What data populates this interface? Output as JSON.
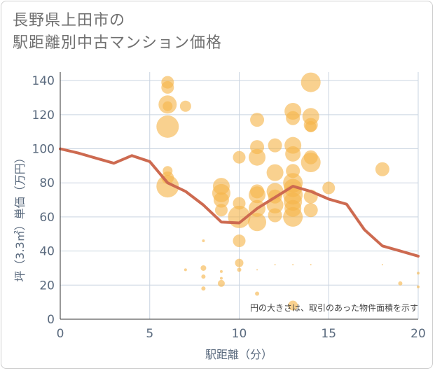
{
  "chart_data": {
    "type": "scatter",
    "title": [
      "長野県上田市の",
      "駅距離別中古マンション価格"
    ],
    "xlabel": "駅距離（分）",
    "ylabel": "坪（3.3㎡）単価（万円）",
    "note": "円の大きさは、取引のあった物件面積を示す",
    "xlim": [
      0,
      20
    ],
    "ylim": [
      0,
      145
    ],
    "xticks": [
      "0",
      "5",
      "10",
      "15",
      "20"
    ],
    "yticks": [
      "0",
      "20",
      "40",
      "60",
      "80",
      "100",
      "120",
      "140"
    ],
    "grid": true,
    "colors": {
      "bubble": "#f5b54a",
      "line": "#cd6a50",
      "grid": "#c9d4e0"
    },
    "series": [
      {
        "type": "bubble",
        "points": [
          {
            "x": 6,
            "y": 139,
            "s": 9
          },
          {
            "x": 6,
            "y": 136,
            "s": 9
          },
          {
            "x": 6,
            "y": 126,
            "s": 13
          },
          {
            "x": 6,
            "y": 125,
            "s": 7
          },
          {
            "x": 6,
            "y": 113,
            "s": 16
          },
          {
            "x": 7,
            "y": 125,
            "s": 8
          },
          {
            "x": 6,
            "y": 87,
            "s": 7
          },
          {
            "x": 6,
            "y": 83,
            "s": 9
          },
          {
            "x": 6,
            "y": 78,
            "s": 16
          },
          {
            "x": 7,
            "y": 29,
            "s": 2
          },
          {
            "x": 8,
            "y": 46,
            "s": 2
          },
          {
            "x": 8,
            "y": 30,
            "s": 4
          },
          {
            "x": 8,
            "y": 25,
            "s": 3
          },
          {
            "x": 8,
            "y": 18,
            "s": 3
          },
          {
            "x": 9,
            "y": 78,
            "s": 12
          },
          {
            "x": 9,
            "y": 74,
            "s": 13
          },
          {
            "x": 9,
            "y": 70,
            "s": 11
          },
          {
            "x": 9,
            "y": 64,
            "s": 9
          },
          {
            "x": 9,
            "y": 28,
            "s": 2
          },
          {
            "x": 9,
            "y": 24,
            "s": 2
          },
          {
            "x": 9,
            "y": 21,
            "s": 5
          },
          {
            "x": 10,
            "y": 95,
            "s": 9
          },
          {
            "x": 10,
            "y": 68,
            "s": 9
          },
          {
            "x": 10,
            "y": 60,
            "s": 16
          },
          {
            "x": 10,
            "y": 46,
            "s": 9
          },
          {
            "x": 10,
            "y": 33,
            "s": 6
          },
          {
            "x": 10,
            "y": 29,
            "s": 3
          },
          {
            "x": 11,
            "y": 117,
            "s": 10
          },
          {
            "x": 11,
            "y": 101,
            "s": 10
          },
          {
            "x": 11,
            "y": 95,
            "s": 12
          },
          {
            "x": 11,
            "y": 75,
            "s": 10
          },
          {
            "x": 11,
            "y": 73,
            "s": 12
          },
          {
            "x": 11,
            "y": 65,
            "s": 12
          },
          {
            "x": 11,
            "y": 57,
            "s": 13
          },
          {
            "x": 11,
            "y": 29,
            "s": 1
          },
          {
            "x": 11,
            "y": 15,
            "s": 3
          },
          {
            "x": 12,
            "y": 102,
            "s": 10
          },
          {
            "x": 12,
            "y": 86,
            "s": 12
          },
          {
            "x": 12,
            "y": 75,
            "s": 12
          },
          {
            "x": 12,
            "y": 72,
            "s": 10
          },
          {
            "x": 12,
            "y": 67,
            "s": 12
          },
          {
            "x": 12,
            "y": 61,
            "s": 10
          },
          {
            "x": 12,
            "y": 32,
            "s": 1
          },
          {
            "x": 13,
            "y": 122,
            "s": 12
          },
          {
            "x": 13,
            "y": 118,
            "s": 10
          },
          {
            "x": 13,
            "y": 102,
            "s": 12
          },
          {
            "x": 13,
            "y": 97,
            "s": 11
          },
          {
            "x": 13,
            "y": 87,
            "s": 10
          },
          {
            "x": 13,
            "y": 80,
            "s": 14
          },
          {
            "x": 13,
            "y": 77,
            "s": 13
          },
          {
            "x": 13,
            "y": 73,
            "s": 14
          },
          {
            "x": 13,
            "y": 69,
            "s": 13
          },
          {
            "x": 13,
            "y": 65,
            "s": 12
          },
          {
            "x": 13,
            "y": 60,
            "s": 14
          },
          {
            "x": 13,
            "y": 32,
            "s": 1
          },
          {
            "x": 13,
            "y": 8,
            "s": 7
          },
          {
            "x": 14,
            "y": 139,
            "s": 14
          },
          {
            "x": 14,
            "y": 119,
            "s": 12
          },
          {
            "x": 14,
            "y": 114,
            "s": 10
          },
          {
            "x": 14,
            "y": 113,
            "s": 8
          },
          {
            "x": 14,
            "y": 95,
            "s": 10
          },
          {
            "x": 14,
            "y": 92,
            "s": 14
          },
          {
            "x": 14,
            "y": 72,
            "s": 10
          },
          {
            "x": 14,
            "y": 64,
            "s": 10
          },
          {
            "x": 14,
            "y": 32,
            "s": 1
          },
          {
            "x": 15,
            "y": 77,
            "s": 9
          },
          {
            "x": 18,
            "y": 88,
            "s": 10
          },
          {
            "x": 18,
            "y": 32,
            "s": 1
          },
          {
            "x": 19,
            "y": 21,
            "s": 3
          },
          {
            "x": 20,
            "y": 27,
            "s": 2
          },
          {
            "x": 20,
            "y": 19,
            "s": 2
          }
        ]
      },
      {
        "type": "line",
        "x": [
          0,
          1,
          2,
          3,
          4,
          5,
          6,
          7,
          8,
          9,
          10,
          11,
          12,
          13,
          14,
          15,
          16,
          17,
          18,
          19,
          20
        ],
        "y": [
          100,
          97.5,
          94.5,
          91.5,
          96,
          92.5,
          80,
          75,
          67,
          57,
          56.5,
          65,
          71.5,
          78,
          75,
          70.5,
          67.5,
          52.5,
          43,
          40,
          37
        ]
      }
    ]
  }
}
